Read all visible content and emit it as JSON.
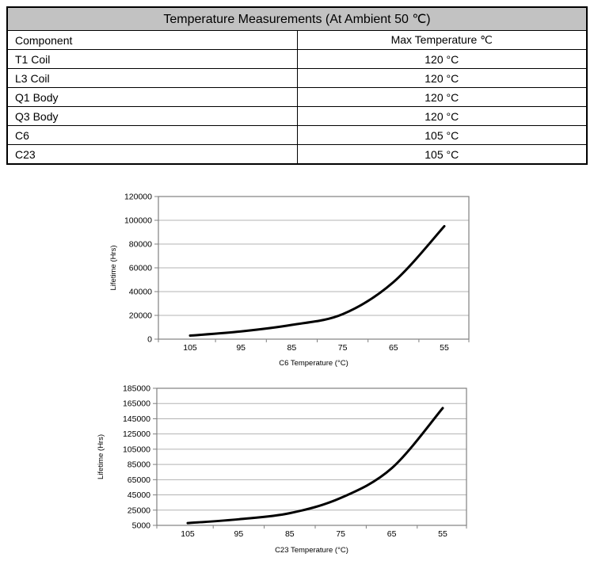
{
  "table": {
    "title": "Temperature Measurements (At Ambient 50 ℃)",
    "columns": [
      "Component",
      "Max Temperature ℃"
    ],
    "rows": [
      {
        "component": "T1 Coil",
        "max_temp": "120 °C"
      },
      {
        "component": "L3 Coil",
        "max_temp": "120 °C"
      },
      {
        "component": "Q1 Body",
        "max_temp": "120 °C"
      },
      {
        "component": "Q3 Body",
        "max_temp": "120 °C"
      },
      {
        "component": "C6",
        "max_temp": "105 °C"
      },
      {
        "component": "C23",
        "max_temp": "105 °C"
      }
    ]
  },
  "chart_data": [
    {
      "type": "line",
      "name": "c6-lifetime",
      "x": [
        105,
        95,
        85,
        75,
        65,
        55
      ],
      "values": [
        3000,
        6500,
        12000,
        21000,
        48000,
        95000
      ],
      "title": "",
      "xlabel": "C6 Temperature (°C)",
      "ylabel": "Lifetime (Hrs)",
      "ylim": [
        0,
        120000
      ],
      "ytick_step": 20000,
      "x_axis_direction": "reversed-temperature",
      "grid": "horizontal",
      "legend": "none"
    },
    {
      "type": "line",
      "name": "c23-lifetime",
      "x": [
        105,
        95,
        85,
        75,
        65,
        55
      ],
      "values": [
        8000,
        13000,
        21000,
        41000,
        80000,
        159000
      ],
      "title": "",
      "xlabel": "C23 Temperature (°C)",
      "ylabel": "Lifetime (Hrs)",
      "ylim": [
        5000,
        185000
      ],
      "ytick_step": 20000,
      "x_axis_direction": "reversed-temperature",
      "grid": "horizontal",
      "legend": "none"
    }
  ],
  "colors": {
    "table_header_bg": "#c2c2c2",
    "table_border": "#000000",
    "gridline": "#b3b3b3",
    "plot_border": "#808080",
    "tick": "#808080",
    "curve": "#000000",
    "background": "#ffffff"
  }
}
